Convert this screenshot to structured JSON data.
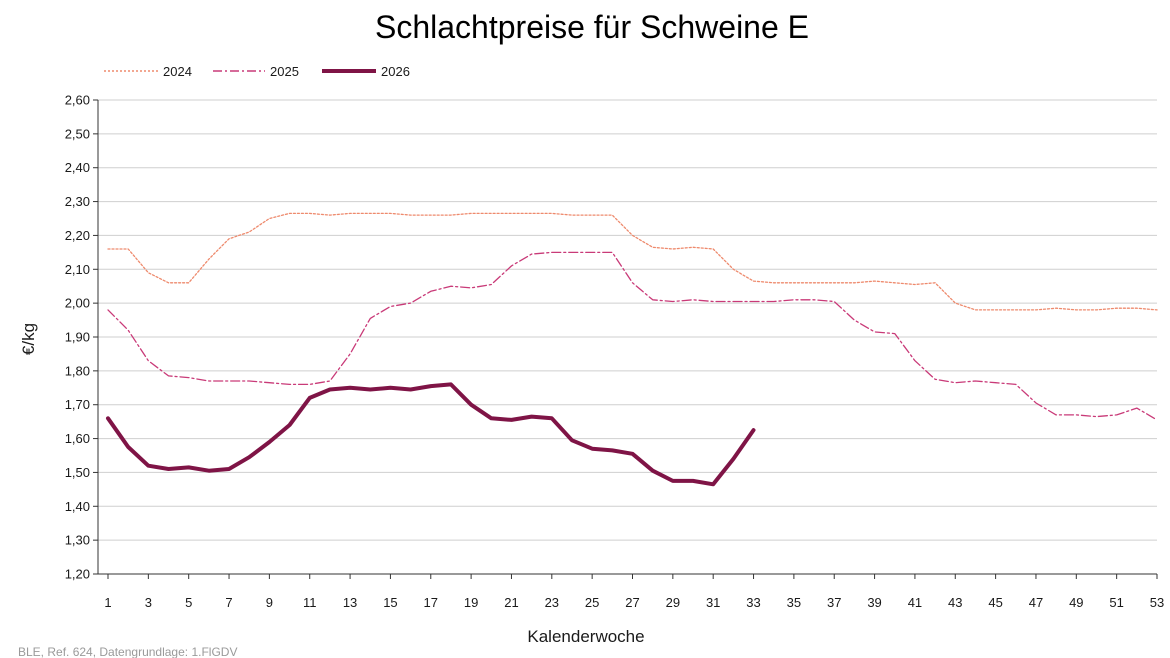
{
  "chart_data": {
    "type": "line",
    "title": "Schlachtpreise für Schweine E",
    "xlabel": "Kalenderwoche",
    "ylabel": "€/kg",
    "xlim": [
      1,
      53
    ],
    "ylim": [
      1.2,
      2.6
    ],
    "yticks": [
      1.2,
      1.3,
      1.4,
      1.5,
      1.6,
      1.7,
      1.8,
      1.9,
      2.0,
      2.1,
      2.2,
      2.3,
      2.4,
      2.5,
      2.6
    ],
    "ytick_labels": [
      "1,20",
      "1,30",
      "1,40",
      "1,50",
      "1,60",
      "1,70",
      "1,80",
      "1,90",
      "2,00",
      "2,10",
      "2,20",
      "2,30",
      "2,40",
      "2,50",
      "2,60"
    ],
    "xticks": [
      1,
      3,
      5,
      7,
      9,
      11,
      13,
      15,
      17,
      19,
      21,
      23,
      25,
      27,
      29,
      31,
      33,
      35,
      37,
      39,
      41,
      43,
      45,
      47,
      49,
      51,
      53
    ],
    "xtick_labels": [
      "1",
      "3",
      "5",
      "7",
      "9",
      "11",
      "13",
      "15",
      "17",
      "19",
      "21",
      "23",
      "25",
      "27",
      "29",
      "31",
      "33",
      "35",
      "37",
      "39",
      "41",
      "43",
      "45",
      "47",
      "49",
      "51",
      "53"
    ],
    "grid": "horizontal",
    "legend_position": "top-left",
    "series": [
      {
        "name": "2024",
        "style": "dotted",
        "color": "#ee8a6d",
        "x": [
          1,
          2,
          3,
          4,
          5,
          6,
          7,
          8,
          9,
          10,
          11,
          12,
          13,
          14,
          15,
          16,
          17,
          18,
          19,
          20,
          21,
          22,
          23,
          24,
          25,
          26,
          27,
          28,
          29,
          30,
          31,
          32,
          33,
          34,
          35,
          36,
          37,
          38,
          39,
          40,
          41,
          42,
          43,
          44,
          45,
          46,
          47,
          48,
          49,
          50,
          51,
          52,
          53
        ],
        "values": [
          2.16,
          2.16,
          2.09,
          2.06,
          2.06,
          2.13,
          2.19,
          2.21,
          2.25,
          2.265,
          2.265,
          2.26,
          2.265,
          2.265,
          2.265,
          2.26,
          2.26,
          2.26,
          2.265,
          2.265,
          2.265,
          2.265,
          2.265,
          2.26,
          2.26,
          2.26,
          2.2,
          2.165,
          2.16,
          2.165,
          2.16,
          2.1,
          2.065,
          2.06,
          2.06,
          2.06,
          2.06,
          2.06,
          2.065,
          2.06,
          2.055,
          2.06,
          2.0,
          1.98,
          1.98,
          1.98,
          1.98,
          1.985,
          1.98,
          1.98,
          1.985,
          1.985,
          1.98
        ]
      },
      {
        "name": "2025",
        "style": "dashdot",
        "color": "#c93a78",
        "x": [
          1,
          2,
          3,
          4,
          5,
          6,
          7,
          8,
          9,
          10,
          11,
          12,
          13,
          14,
          15,
          16,
          17,
          18,
          19,
          20,
          21,
          22,
          23,
          24,
          25,
          26,
          27,
          28,
          29,
          30,
          31,
          32,
          33,
          34,
          35,
          36,
          37,
          38,
          39,
          40,
          41,
          42,
          43,
          44,
          45,
          46,
          47,
          48,
          49,
          50,
          51,
          52,
          53
        ],
        "values": [
          1.98,
          1.92,
          1.83,
          1.785,
          1.78,
          1.77,
          1.77,
          1.77,
          1.765,
          1.76,
          1.76,
          1.77,
          1.85,
          1.955,
          1.99,
          2.0,
          2.035,
          2.05,
          2.045,
          2.055,
          2.11,
          2.145,
          2.15,
          2.15,
          2.15,
          2.15,
          2.06,
          2.01,
          2.005,
          2.01,
          2.005,
          2.005,
          2.005,
          2.005,
          2.01,
          2.01,
          2.005,
          1.95,
          1.915,
          1.91,
          1.83,
          1.775,
          1.765,
          1.77,
          1.765,
          1.76,
          1.705,
          1.67,
          1.67,
          1.665,
          1.67,
          1.69,
          1.655
        ]
      },
      {
        "name": "2026",
        "style": "solid",
        "color": "#7f1446",
        "x": [
          1,
          2,
          3,
          4,
          5,
          6,
          7,
          8,
          9,
          10,
          11,
          12,
          13,
          14,
          15,
          16,
          17,
          18,
          19,
          20,
          21,
          22,
          23,
          24,
          25,
          26,
          27,
          28,
          29,
          30,
          31,
          32,
          33
        ],
        "values": [
          1.66,
          1.575,
          1.52,
          1.51,
          1.515,
          1.505,
          1.51,
          1.545,
          1.59,
          1.64,
          1.72,
          1.745,
          1.75,
          1.745,
          1.75,
          1.745,
          1.755,
          1.76,
          1.7,
          1.66,
          1.655,
          1.665,
          1.66,
          1.595,
          1.57,
          1.565,
          1.555,
          1.505,
          1.475,
          1.475,
          1.465,
          1.54,
          1.625
        ]
      }
    ],
    "source_note": "BLE, Ref. 624, Datengrundlage: 1.FlGDV"
  }
}
